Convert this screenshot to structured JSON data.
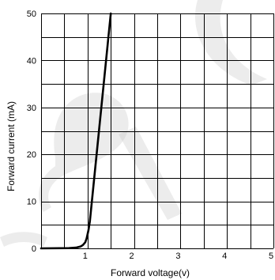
{
  "chart_data": {
    "type": "line",
    "title": "",
    "xlabel": "Forward voltage(v)",
    "ylabel": "Forward current (mA)",
    "xlim": [
      0,
      5
    ],
    "ylim": [
      0,
      50
    ],
    "x_ticks": [
      "1",
      "2",
      "3",
      "4",
      "5"
    ],
    "y_ticks": [
      "0",
      "10",
      "20",
      "30",
      "40",
      "50"
    ],
    "x_minor_divisions": 2,
    "y_minor_divisions": 2,
    "grid": true,
    "legend": "none",
    "series": [
      {
        "color": "#000000",
        "x": [
          0,
          0.6,
          0.75,
          0.85,
          0.9,
          0.95,
          0.98,
          1.0,
          1.02,
          1.05,
          1.5
        ],
        "y": [
          0,
          0.05,
          0.15,
          0.4,
          0.7,
          1.3,
          2.1,
          3.0,
          3.9,
          5.7,
          50
        ]
      }
    ]
  }
}
